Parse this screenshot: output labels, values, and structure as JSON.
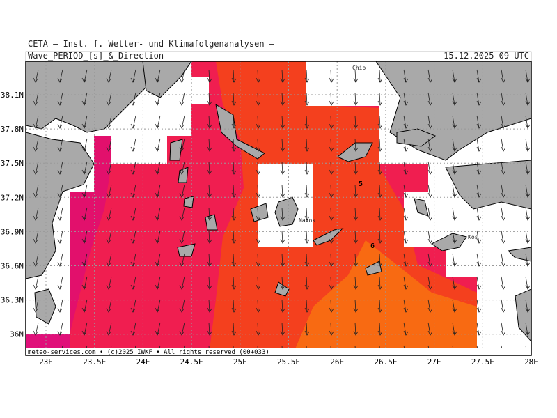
{
  "header": {
    "institute": "CETA — Inst. f. Wetter- und Klimafolgenanalysen —",
    "parameter": "Wave_PERIOD_[s]_&_Direction",
    "valid_time": "15.12.2025 09 UTC"
  },
  "footer": "meteo-services.com • (c)2025 IWKF • All rights reserved (00+033)",
  "lon_labels": [
    "23E",
    "23.5E",
    "24E",
    "24.5E",
    "25E",
    "25.5E",
    "26E",
    "26.5E",
    "27E",
    "27.5E",
    "28E"
  ],
  "lat_labels": [
    "38.1N",
    "37.8N",
    "37.5N",
    "37.2N",
    "36.9N",
    "36.6N",
    "36.3N",
    "36N"
  ],
  "places": [
    "Chio",
    "Naxos",
    "Kos"
  ],
  "contour_labels": [
    "5",
    "6"
  ]
}
